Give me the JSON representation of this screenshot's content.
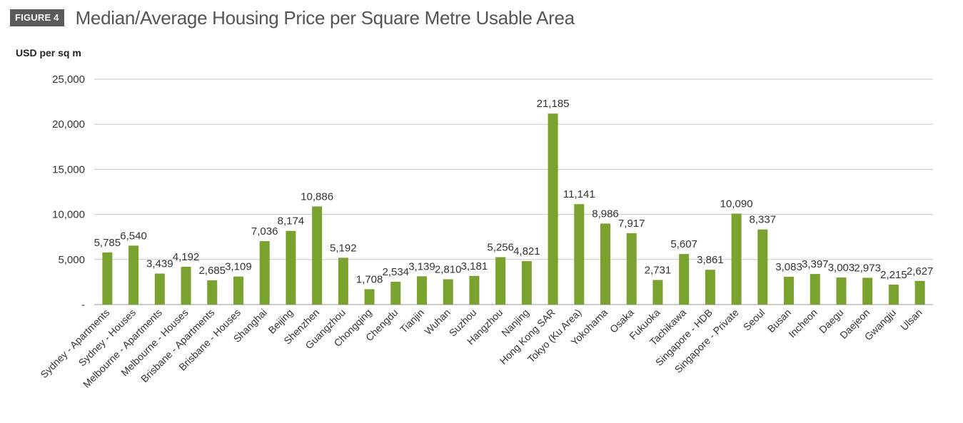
{
  "header": {
    "badge": "FIGURE 4",
    "title": "Median/Average Housing Price per Square Metre Usable Area"
  },
  "chart_data": {
    "type": "bar",
    "title": "Median/Average Housing Price per Square Metre Usable Area",
    "ylabel": "USD per sq m",
    "xlabel": "",
    "ylim": [
      0,
      25000
    ],
    "yticks": [
      0,
      5000,
      10000,
      15000,
      20000,
      25000
    ],
    "ytick_labels": [
      "-",
      "5,000",
      "10,000",
      "15,000",
      "20,000",
      "25,000"
    ],
    "grid": true,
    "bar_color": "#7aa22f",
    "categories": [
      "Sydney - Apartments",
      "Sydney - Houses",
      "Melbourne - Apartments",
      "Melbourne - Houses",
      "Brisbane - Apartments",
      "Brisbane - Houses",
      "Shanghai",
      "Beijing",
      "Shenzhen",
      "Guangzhou",
      "Chongqing",
      "Chengdu",
      "Tianjin",
      "Wuhan",
      "Suzhou",
      "Hangzhou",
      "Nanjing",
      "Hong Kong SAR",
      "Tokyo (Ku Area)",
      "Yokohama",
      "Osaka",
      "Fukuoka",
      "Tachikawa",
      "Singapore - HDB",
      "Singapore - Private",
      "Seoul",
      "Busan",
      "Incheon",
      "Daegu",
      "Daejeon",
      "Gwangju",
      "Ulsan"
    ],
    "values": [
      5785,
      6540,
      3439,
      4192,
      2685,
      3109,
      7036,
      8174,
      10886,
      5192,
      1708,
      2534,
      3139,
      2810,
      3181,
      5256,
      4821,
      21185,
      11141,
      8986,
      7917,
      2731,
      5607,
      3861,
      10090,
      8337,
      3083,
      3397,
      3003,
      2973,
      2215,
      2627
    ],
    "value_labels": [
      "5,785",
      "6,540",
      "3,439",
      "4,192",
      "2,685",
      "3,109",
      "7,036",
      "8,174",
      "10,886",
      "5,192",
      "1,708",
      "2,534",
      "3,139",
      "2,810",
      "3,181",
      "5,256",
      "4,821",
      "21,185",
      "11,141",
      "8,986",
      "7,917",
      "2,731",
      "5,607",
      "3,861",
      "10,090",
      "8,337",
      "3,083",
      "3,397",
      "3,003",
      "2,973",
      "2,215",
      "2,627"
    ]
  }
}
